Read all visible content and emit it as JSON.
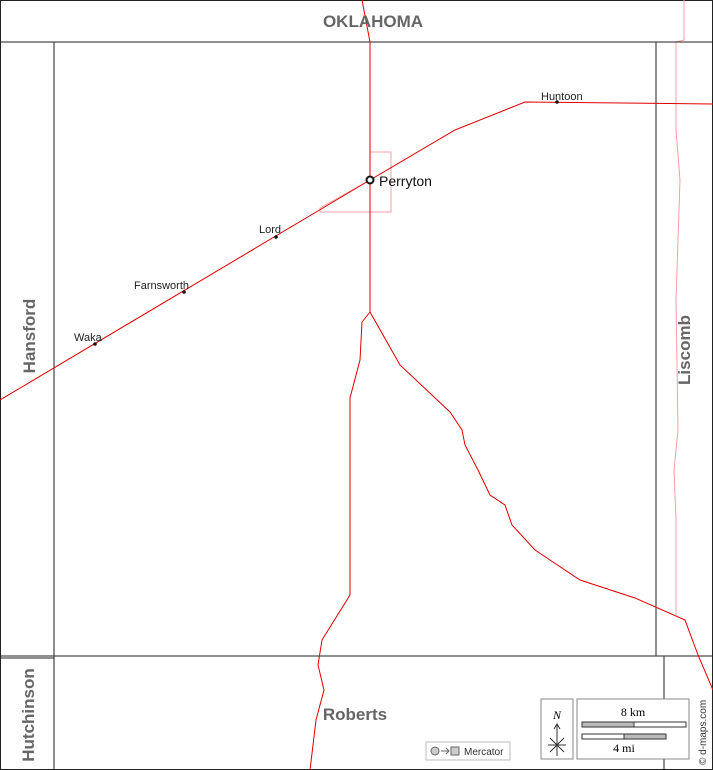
{
  "neighbors": {
    "north": "OKLAHOMA",
    "west": "Hansford",
    "east": "Liscomb",
    "southwest": "Hutchinson",
    "south": "Roberts"
  },
  "places": {
    "seat": "Perryton",
    "towns": [
      "Huntoon",
      "Lord",
      "Farnsworth",
      "Waka"
    ]
  },
  "compass": "N",
  "scale": {
    "km": "8 km",
    "mi": "4 mi"
  },
  "projection": "Mercator",
  "credit": "© d-maps.com"
}
